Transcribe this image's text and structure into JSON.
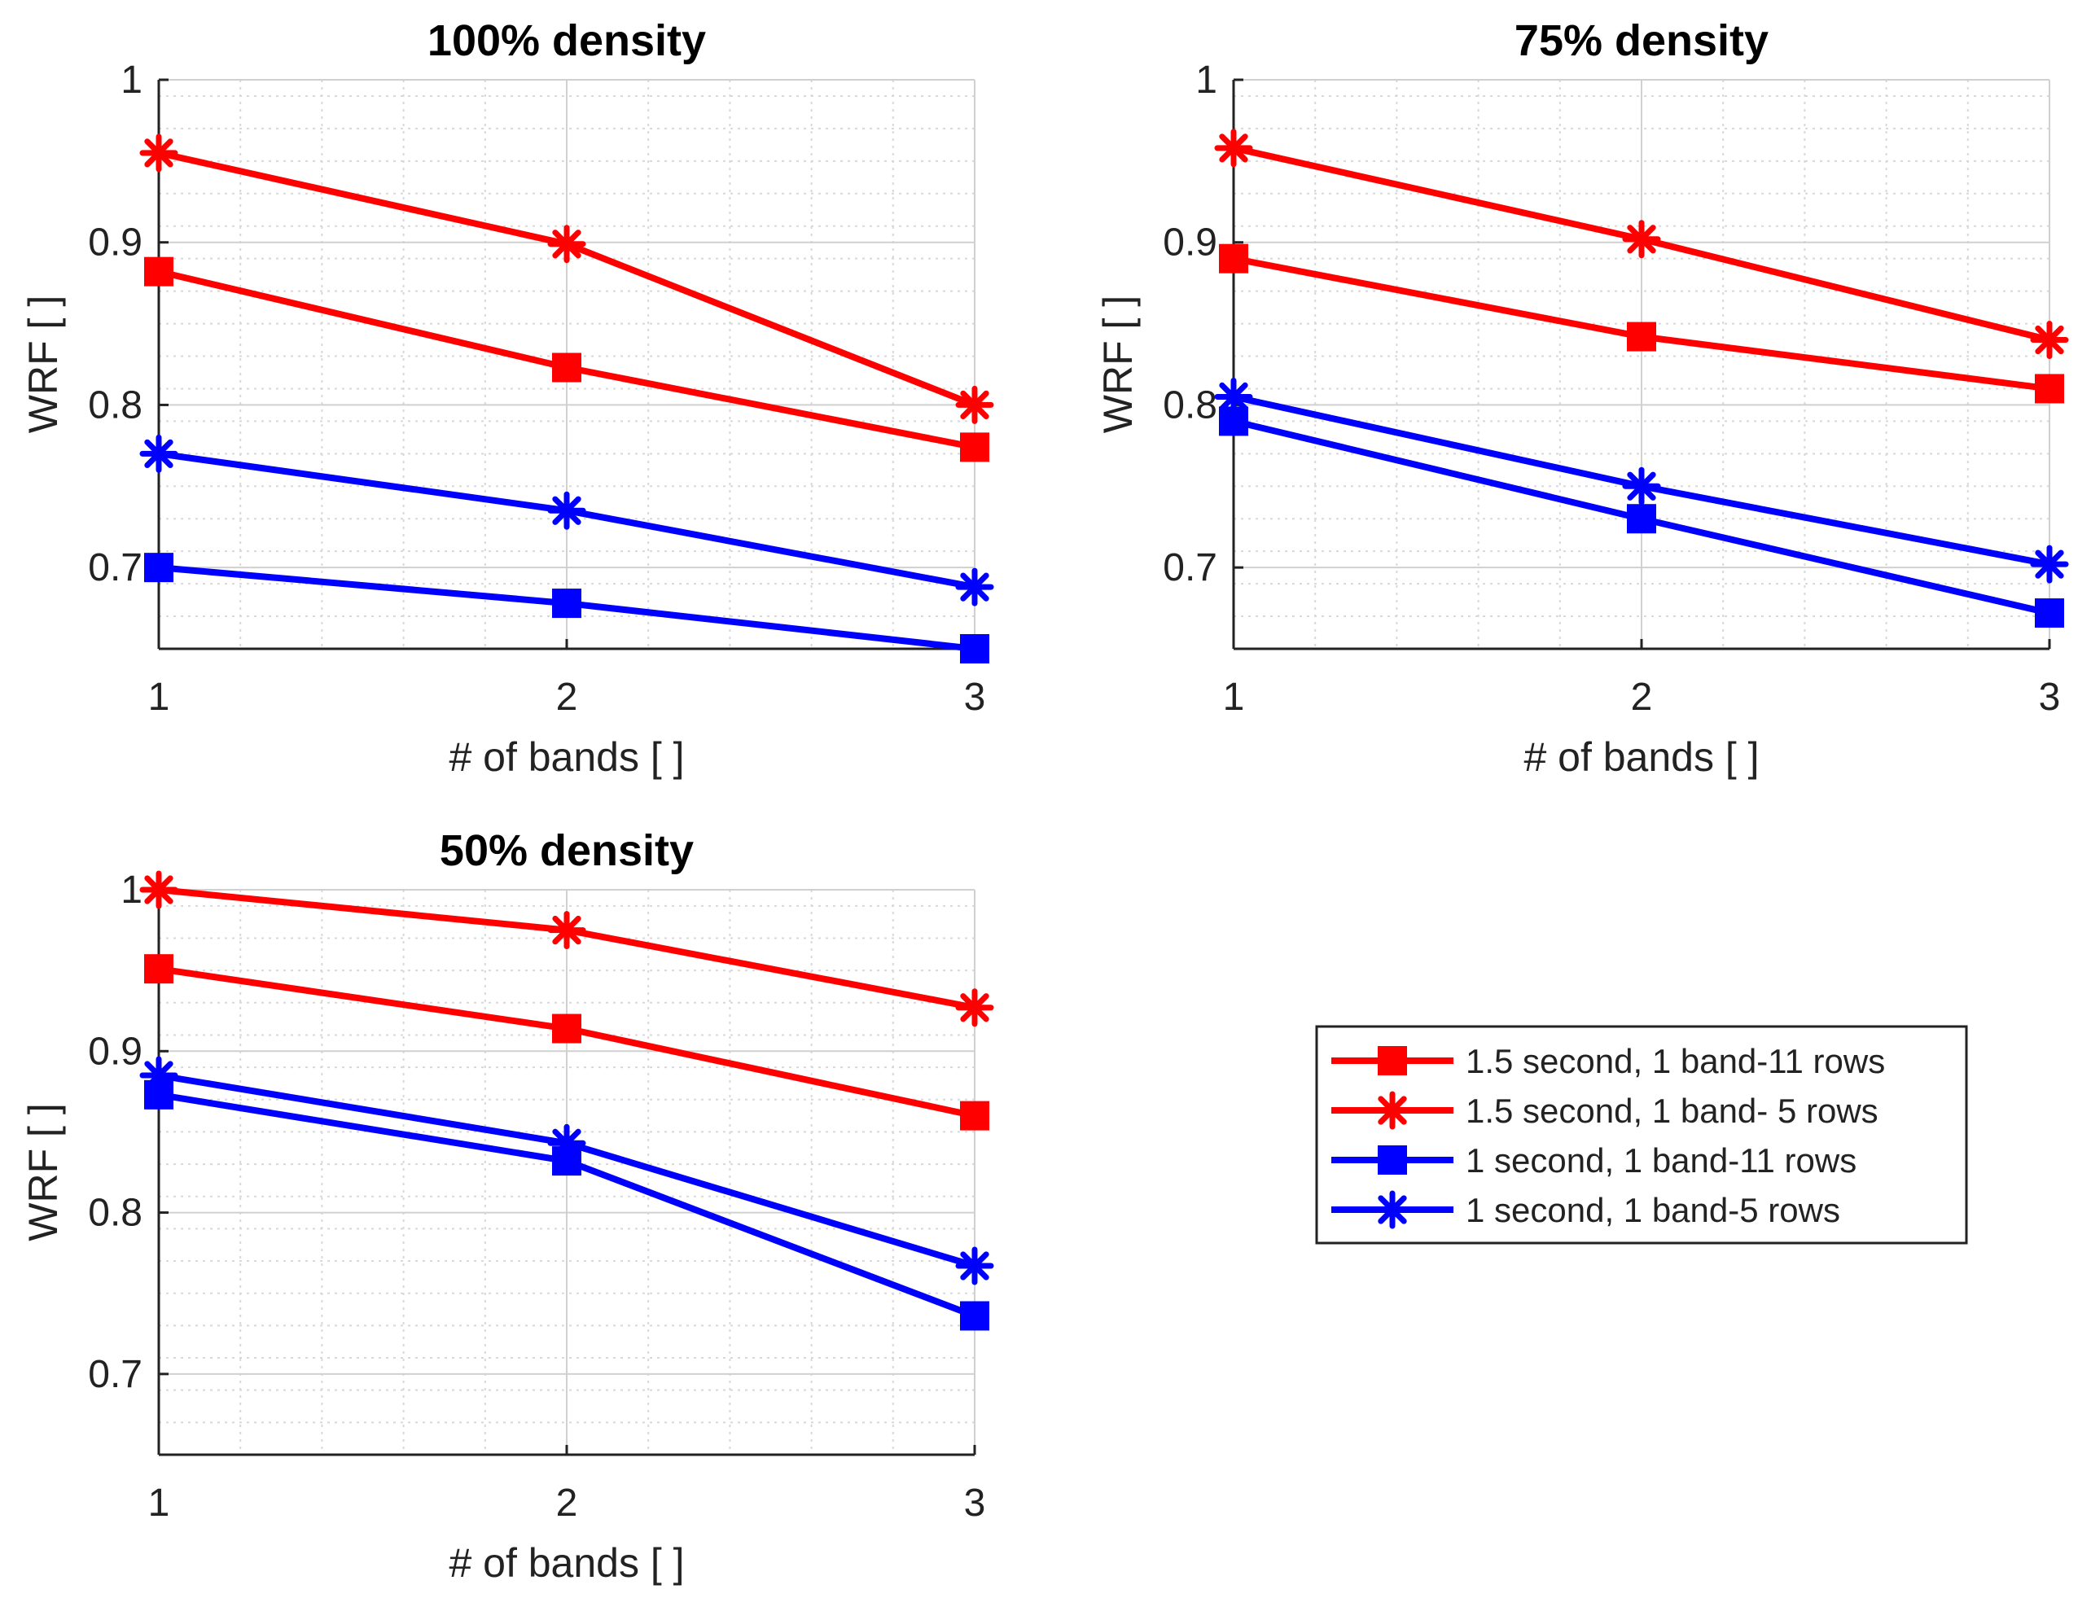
{
  "colors": {
    "red": "#ff0000",
    "blue": "#0000ff"
  },
  "legend": {
    "placement": "right, beside bottom-left panel",
    "items": [
      {
        "label": "1.5 second, 1 band-11 rows",
        "color": "#ff0000",
        "marker": "square"
      },
      {
        "label": "1.5 second, 1 band- 5 rows",
        "color": "#ff0000",
        "marker": "asterisk"
      },
      {
        "label": "1 second, 1 band-11 rows",
        "color": "#0000ff",
        "marker": "square"
      },
      {
        "label": "1 second, 1 band-5 rows",
        "color": "#0000ff",
        "marker": "asterisk"
      }
    ]
  },
  "chart_data": [
    {
      "type": "line",
      "title": "100% density",
      "xlabel": "# of bands [ ]",
      "ylabel": "WRF [ ]",
      "x": [
        1,
        2,
        3
      ],
      "xticks": [
        "1",
        "2",
        "3"
      ],
      "yticks": [
        "0.7",
        "0.8",
        "0.9",
        "1"
      ],
      "ytick_values": [
        0.7,
        0.8,
        0.9,
        1
      ],
      "xlim": [
        1,
        3
      ],
      "ylim": [
        0.65,
        1
      ],
      "grid": true,
      "series": [
        {
          "legend_index": 0,
          "values": [
            0.882,
            0.823,
            0.774
          ]
        },
        {
          "legend_index": 1,
          "values": [
            0.955,
            0.899,
            0.8
          ]
        },
        {
          "legend_index": 2,
          "values": [
            0.7,
            0.678,
            0.65
          ]
        },
        {
          "legend_index": 3,
          "values": [
            0.77,
            0.735,
            0.688
          ]
        }
      ]
    },
    {
      "type": "line",
      "title": "75% density",
      "xlabel": "# of bands [ ]",
      "ylabel": "WRF [ ]",
      "x": [
        1,
        2,
        3
      ],
      "xticks": [
        "1",
        "2",
        "3"
      ],
      "yticks": [
        "0.7",
        "0.8",
        "0.9",
        "1"
      ],
      "ytick_values": [
        0.7,
        0.8,
        0.9,
        1
      ],
      "xlim": [
        1,
        3
      ],
      "ylim": [
        0.65,
        1
      ],
      "grid": true,
      "series": [
        {
          "legend_index": 0,
          "values": [
            0.89,
            0.842,
            0.81
          ]
        },
        {
          "legend_index": 1,
          "values": [
            0.958,
            0.902,
            0.84
          ]
        },
        {
          "legend_index": 2,
          "values": [
            0.79,
            0.73,
            0.672
          ]
        },
        {
          "legend_index": 3,
          "values": [
            0.805,
            0.75,
            0.702
          ]
        }
      ]
    },
    {
      "type": "line",
      "title": "50% density",
      "xlabel": "# of bands [ ]",
      "ylabel": "WRF [ ]",
      "x": [
        1,
        2,
        3
      ],
      "xticks": [
        "1",
        "2",
        "3"
      ],
      "yticks": [
        "0.7",
        "0.8",
        "0.9",
        "1"
      ],
      "ytick_values": [
        0.7,
        0.8,
        0.9,
        1
      ],
      "xlim": [
        1,
        3
      ],
      "ylim": [
        0.65,
        1
      ],
      "grid": true,
      "series": [
        {
          "legend_index": 0,
          "values": [
            0.951,
            0.914,
            0.86
          ]
        },
        {
          "legend_index": 1,
          "values": [
            1.0,
            0.975,
            0.927
          ]
        },
        {
          "legend_index": 2,
          "values": [
            0.873,
            0.832,
            0.736
          ]
        },
        {
          "legend_index": 3,
          "values": [
            0.885,
            0.843,
            0.767
          ]
        }
      ]
    }
  ]
}
